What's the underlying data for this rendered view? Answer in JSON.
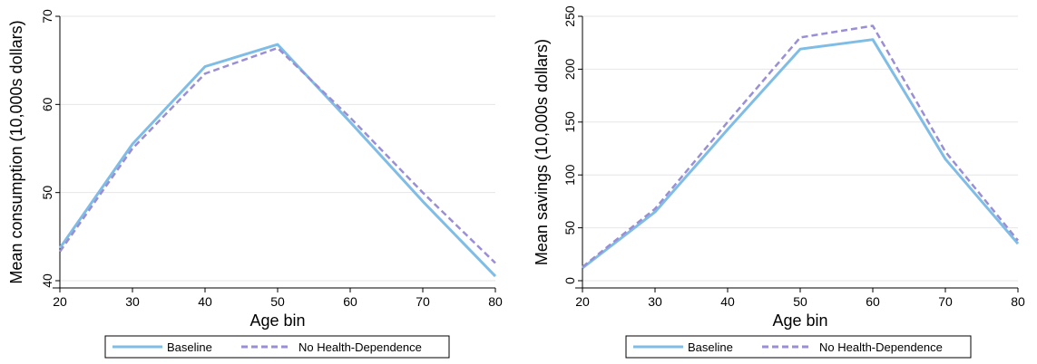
{
  "colors": {
    "baseline": "#7fbde6",
    "no_health": "#9a8fd6",
    "grid": "#e6e6e6",
    "axis": "#000000",
    "legend_border": "#000000"
  },
  "chart_data": [
    {
      "type": "line",
      "title": "",
      "xlabel": "Age bin",
      "ylabel": "Mean consumption (10,000s dollars)",
      "x": [
        20,
        30,
        40,
        50,
        60,
        70,
        80
      ],
      "xticks": [
        20,
        30,
        40,
        50,
        60,
        70,
        80
      ],
      "xlim": [
        20,
        80
      ],
      "yticks": [
        40,
        50,
        60,
        70
      ],
      "ylim": [
        40,
        70
      ],
      "grid": true,
      "legend_position": "bottom",
      "series": [
        {
          "name": "Baseline",
          "style": "solid",
          "color": "#7fbde6",
          "values": [
            43.7,
            55.5,
            64.3,
            66.8,
            58.0,
            49.0,
            40.5
          ]
        },
        {
          "name": "No Health-Dependence",
          "style": "dashed",
          "color": "#9a8fd6",
          "values": [
            43.3,
            55.0,
            63.5,
            66.4,
            58.5,
            50.0,
            42.0
          ]
        }
      ]
    },
    {
      "type": "line",
      "title": "",
      "xlabel": "Age bin",
      "ylabel": "Mean savings (10,000s dollars)",
      "x": [
        20,
        30,
        40,
        50,
        60,
        70,
        80
      ],
      "xticks": [
        20,
        30,
        40,
        50,
        60,
        70,
        80
      ],
      "xlim": [
        20,
        80
      ],
      "yticks": [
        0,
        50,
        100,
        150,
        200,
        250
      ],
      "ylim": [
        0,
        250
      ],
      "grid": true,
      "legend_position": "bottom",
      "series": [
        {
          "name": "Baseline",
          "style": "solid",
          "color": "#7fbde6",
          "values": [
            12,
            65,
            143,
            219,
            228,
            115,
            35
          ]
        },
        {
          "name": "No Health-Dependence",
          "style": "dashed",
          "color": "#9a8fd6",
          "values": [
            13,
            68,
            150,
            230,
            241,
            122,
            38
          ]
        }
      ]
    }
  ]
}
